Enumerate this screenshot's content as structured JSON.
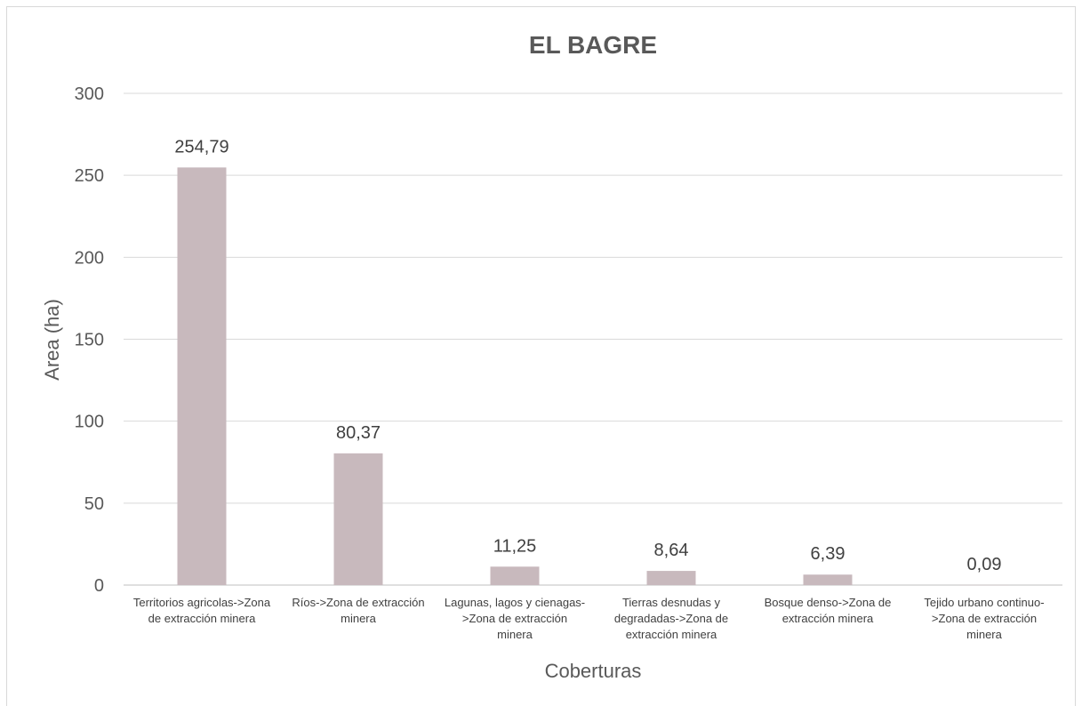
{
  "chart_data": {
    "type": "bar",
    "title": "EL BAGRE",
    "xlabel": "Coberturas",
    "ylabel": "Area (ha)",
    "ylim": [
      0,
      300
    ],
    "yticks": [
      0,
      50,
      100,
      150,
      200,
      250,
      300
    ],
    "grid": true,
    "legend": "none",
    "bar_color": "#c8b9bd",
    "categories": [
      [
        "Territorios agricolas->Zona",
        "de extracción minera"
      ],
      [
        "Ríos->Zona de extracción",
        "minera"
      ],
      [
        "Lagunas, lagos y cienagas-",
        ">Zona de extracción",
        "minera"
      ],
      [
        "Tierras desnudas y",
        "degradadas->Zona de",
        "extracción minera"
      ],
      [
        "Bosque denso->Zona de",
        "extracción minera"
      ],
      [
        "Tejido urbano continuo-",
        ">Zona de extracción",
        "minera"
      ]
    ],
    "values": [
      254.79,
      80.37,
      11.25,
      8.64,
      6.39,
      0.09
    ],
    "value_labels": [
      "254,79",
      "80,37",
      "11,25",
      "8,64",
      "6,39",
      "0,09"
    ]
  }
}
